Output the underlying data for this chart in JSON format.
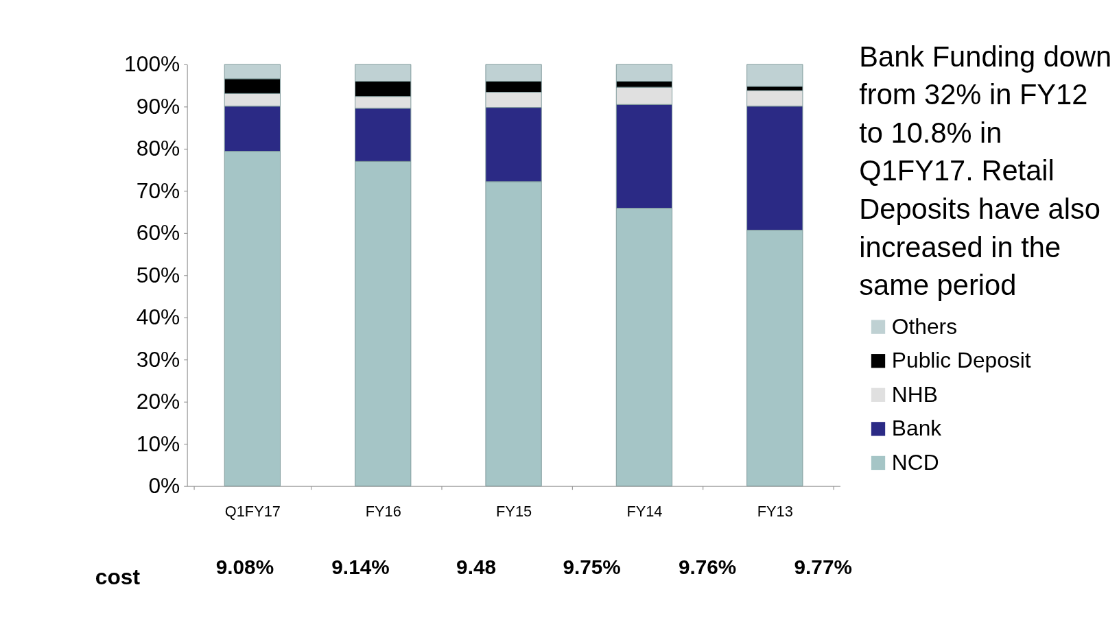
{
  "chart_data": {
    "type": "bar",
    "stacked": true,
    "categories": [
      "Q1FY17",
      "FY16",
      "FY15",
      "FY14",
      "FY13"
    ],
    "series": [
      {
        "name": "NCD",
        "color": "#a5c5c6",
        "values": [
          79.4,
          77.0,
          72.2,
          65.9,
          60.7
        ]
      },
      {
        "name": "Bank",
        "color": "#2b2a85",
        "values": [
          10.7,
          12.6,
          17.6,
          24.6,
          29.4
        ]
      },
      {
        "name": "NHB",
        "color": "#e0e0e0",
        "values": [
          3.0,
          2.8,
          3.6,
          4.1,
          3.7
        ]
      },
      {
        "name": "Public Deposit",
        "color": "#000000",
        "values": [
          3.5,
          3.6,
          2.6,
          1.4,
          1.0
        ]
      },
      {
        "name": "Others",
        "color": "#bfd1d3",
        "values": [
          3.4,
          4.0,
          4.0,
          4.0,
          5.2
        ]
      }
    ],
    "ylim": [
      0,
      100
    ],
    "yticks": [
      {
        "value": 0,
        "label": "0%"
      },
      {
        "value": 10,
        "label": "10%"
      },
      {
        "value": 20,
        "label": "20%"
      },
      {
        "value": 30,
        "label": "30%"
      },
      {
        "value": 40,
        "label": "40%"
      },
      {
        "value": 50,
        "label": "50%"
      },
      {
        "value": 60,
        "label": "60%"
      },
      {
        "value": 70,
        "label": "70%"
      },
      {
        "value": 80,
        "label": "80%"
      },
      {
        "value": 90,
        "label": "90%"
      },
      {
        "value": 100,
        "label": "100%"
      }
    ],
    "grid": false,
    "legend": "right",
    "annotations": [
      "Bank Funding down from 32% in FY12 to 10.8% in Q1FY17. Retail Deposits have also increased in the same period",
      "cost",
      "9.08%",
      "9.14%",
      "9.48",
      "9.75%",
      "9.76%",
      "9.77%"
    ]
  }
}
